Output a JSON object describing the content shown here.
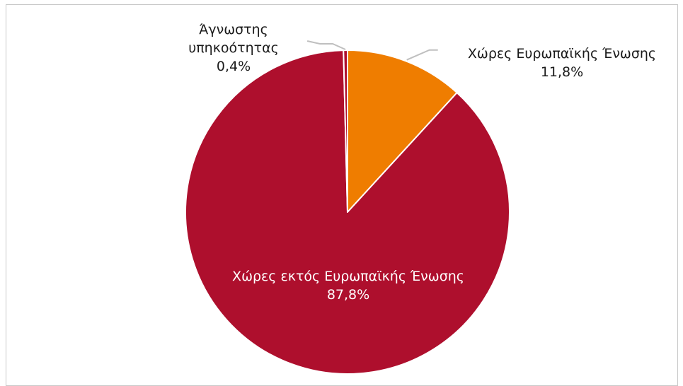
{
  "chart_data": {
    "type": "pie",
    "slices": [
      {
        "label": "Χώρες Ευρωπαϊκής Ένωσης",
        "value": 11.8,
        "display": "11,8%",
        "color": "#ef7d00"
      },
      {
        "label": "Χώρες εκτός Ευρωπαϊκής Ένωσης",
        "value": 87.8,
        "display": "87,8%",
        "color": "#ae0f2d"
      },
      {
        "label": "Άγνωστης υπηκοότητας",
        "label_lines": [
          "Άγνωστης",
          "υπηκοότητας"
        ],
        "value": 0.4,
        "display": "0,4%",
        "color": "#ae0f2d"
      }
    ],
    "slice_border_color": "#ffffff",
    "leader_line_color": "#bfbfbf",
    "legend": "none"
  }
}
